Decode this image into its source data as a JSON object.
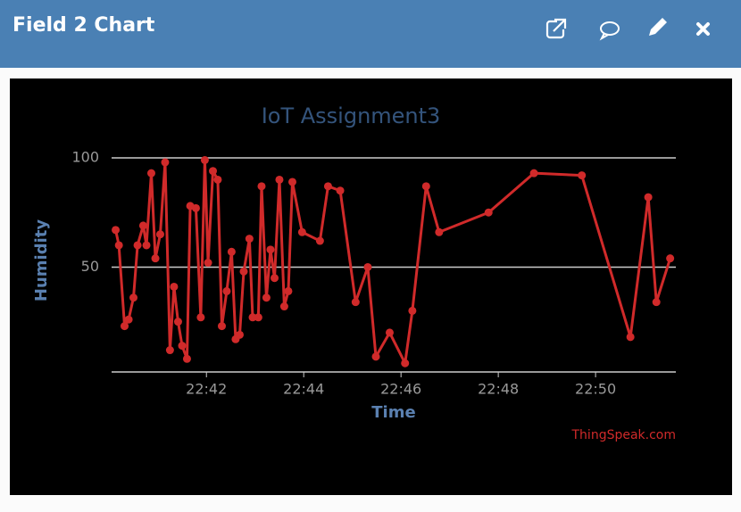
{
  "header": {
    "title": "Field 2 Chart"
  },
  "chart_data": {
    "type": "line",
    "title": "IoT Assignment3",
    "xlabel": "Time",
    "ylabel": "Humidity",
    "credit": "ThingSpeak.com",
    "color": "#d02a2a",
    "grid": true,
    "x": [
      "22:40:08",
      "22:40:12",
      "22:40:19",
      "22:40:24",
      "22:40:30",
      "22:40:35",
      "22:40:42",
      "22:40:46",
      "22:40:52",
      "22:40:57",
      "22:41:03",
      "22:41:09",
      "22:41:15",
      "22:41:20",
      "22:41:25",
      "22:41:30",
      "22:41:36",
      "22:41:40",
      "22:41:47",
      "22:41:53",
      "22:41:58",
      "22:42:02",
      "22:42:08",
      "22:42:14",
      "22:42:19",
      "22:42:25",
      "22:42:31",
      "22:42:36",
      "22:42:41",
      "22:42:46",
      "22:42:53",
      "22:42:57",
      "22:43:04",
      "22:43:08",
      "22:43:14",
      "22:43:19",
      "22:43:24",
      "22:43:30",
      "22:43:36",
      "22:43:41",
      "22:43:46",
      "22:43:58",
      "22:44:20",
      "22:44:30",
      "22:44:45",
      "22:45:04",
      "22:45:19",
      "22:45:29",
      "22:45:46",
      "22:46:05",
      "22:46:14",
      "22:46:31",
      "22:46:47",
      "22:47:48",
      "22:48:44",
      "22:49:43",
      "22:50:43",
      "22:51:05",
      "22:51:15",
      "22:51:32"
    ],
    "values": [
      67,
      60,
      23,
      26,
      36,
      60,
      69,
      60,
      93,
      54,
      65,
      98,
      12,
      41,
      25,
      14,
      8,
      78,
      77,
      27,
      99,
      52,
      94,
      90,
      23,
      39,
      57,
      17,
      19,
      48,
      63,
      27,
      27,
      87,
      36,
      58,
      45,
      90,
      32,
      39,
      89,
      66,
      62,
      87,
      85,
      34,
      50,
      9,
      20,
      6,
      30,
      87,
      66,
      75,
      93,
      92,
      18,
      82,
      34,
      54
    ],
    "xlim": [
      "22:40:03",
      "22:51:39"
    ],
    "xticks": [
      "22:42",
      "22:44",
      "22:46",
      "22:48",
      "22:50"
    ],
    "ylim": [
      2,
      100
    ],
    "yticks": [
      50,
      100
    ]
  }
}
